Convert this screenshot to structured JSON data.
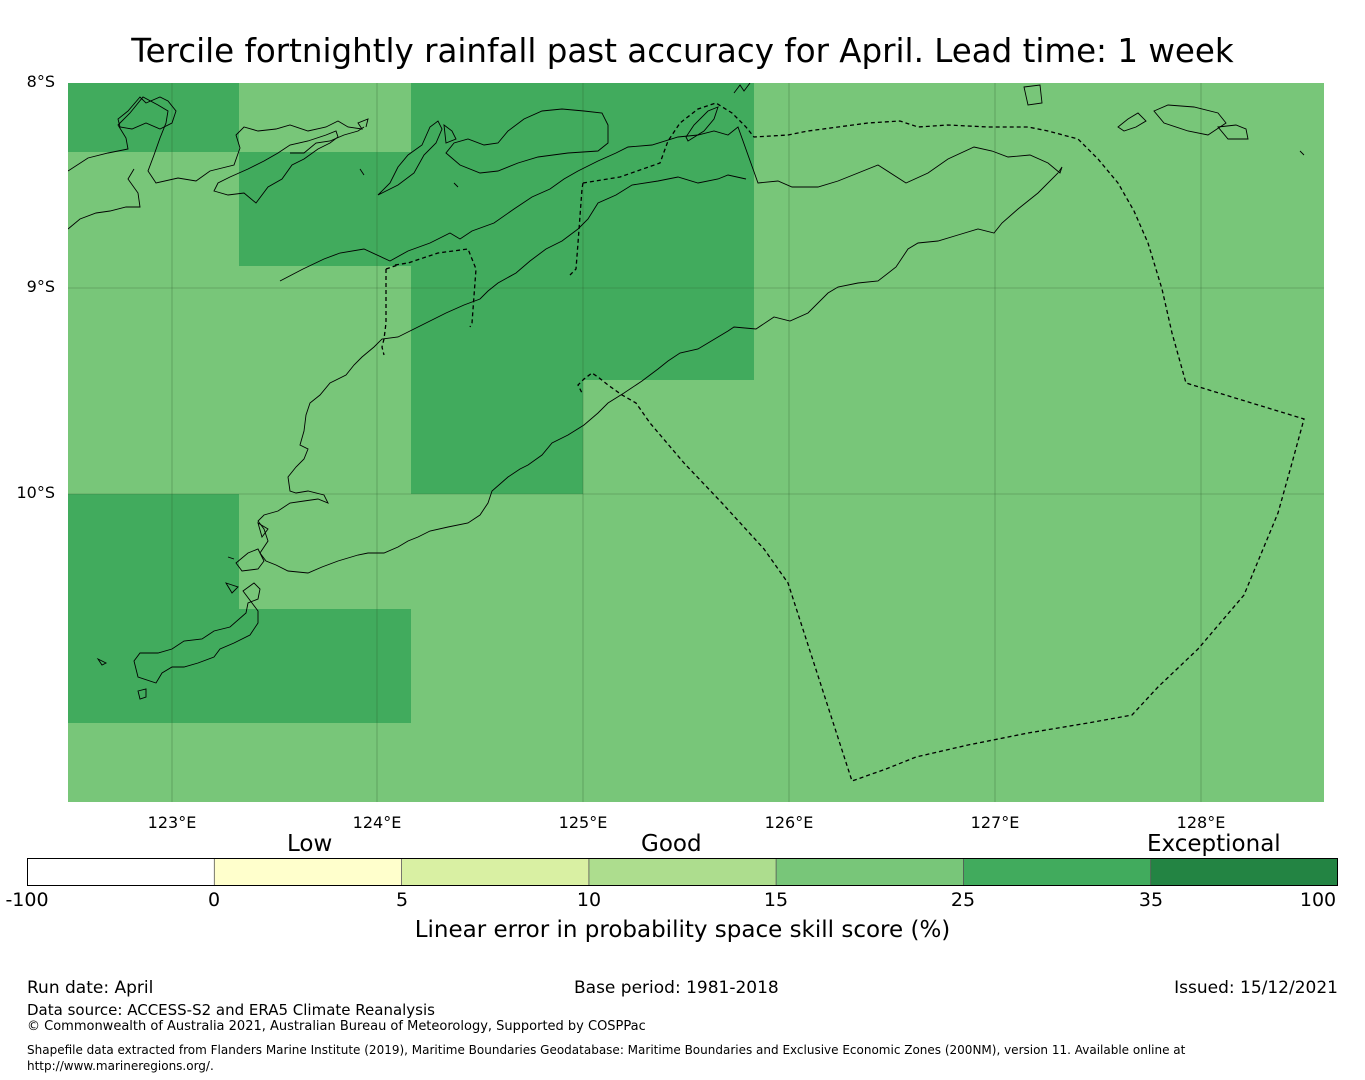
{
  "title": "Tercile fortnightly rainfall past accuracy for April. Lead time: 1 week",
  "latitude_labels": [
    "8°S",
    "9°S",
    "10°S"
  ],
  "longitude_labels": [
    "123°E",
    "124°E",
    "125°E",
    "126°E",
    "127°E",
    "128°E"
  ],
  "colorbar": {
    "categories": [
      "Low",
      "Good",
      "Exceptional"
    ],
    "ticks": [
      "-100",
      "0",
      "5",
      "10",
      "15",
      "25",
      "35",
      "100"
    ],
    "colors": [
      "#ffffff",
      "#ffffcc",
      "#d9f0a3",
      "#addd8e",
      "#78c679",
      "#41ab5d",
      "#238443"
    ],
    "label": "Linear error in probability space skill score (%)"
  },
  "map_colors": {
    "good_15_25": "#78c679",
    "good_25_35": "#41ab5d"
  },
  "footer": {
    "run_date": "Run date: April",
    "base_period": "Base period: 1981-2018",
    "issued": "Issued: 15/12/2021",
    "data_source": "Data source: ACCESS-S2 and ERA5 Climate Reanalysis",
    "copyright": "© Commonwealth of Australia 2021, Australian Bureau of Meteorology, Supported by COSPPac",
    "shapefile": "Shapefile data extracted from Flanders Marine Institute (2019), Maritime Boundaries Geodatabase: Maritime Boundaries and Exclusive Economic Zones (200NM), version 11. Available online at http://www.marineregions.org/."
  }
}
